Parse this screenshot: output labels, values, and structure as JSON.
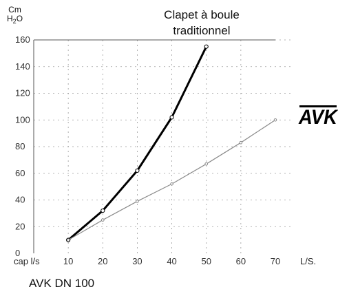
{
  "y_unit": {
    "line1": "Cm",
    "line2_main": "H",
    "line2_sub": "2",
    "line2_end": "O"
  },
  "x_unit_left": "cap l/s",
  "x_unit_right": "L/S.",
  "curve_label_line1": "Clapet à boule",
  "curve_label_line2": "traditionnel",
  "caption": "AVK DN 100",
  "logo_text": "AVK",
  "colors": {
    "traditional": "#000000",
    "avk": "#8a8a8a",
    "grid": "#9a9a9a",
    "axis": "#555555"
  },
  "chart_data": {
    "type": "line",
    "xlim": [
      0,
      70
    ],
    "ylim": [
      0,
      160
    ],
    "x_ticks": [
      10,
      20,
      30,
      40,
      50,
      60,
      70
    ],
    "y_ticks": [
      0,
      20,
      40,
      60,
      80,
      100,
      120,
      140,
      160
    ],
    "x_tick_labels": [
      "10",
      "20",
      "30",
      "40",
      "50",
      "60",
      "70"
    ],
    "y_tick_labels": [
      "0",
      "20",
      "40",
      "60",
      "80",
      "100",
      "120",
      "140",
      "160"
    ],
    "grid": true,
    "series": [
      {
        "name": "Clapet à boule traditionnel",
        "x": [
          10,
          20,
          30,
          40,
          50
        ],
        "y": [
          10,
          32,
          62,
          102,
          155
        ]
      },
      {
        "name": "AVK DN 100",
        "x": [
          10,
          20,
          30,
          40,
          50,
          60,
          70
        ],
        "y": [
          10,
          25,
          39,
          52,
          67,
          83,
          100
        ]
      }
    ]
  }
}
